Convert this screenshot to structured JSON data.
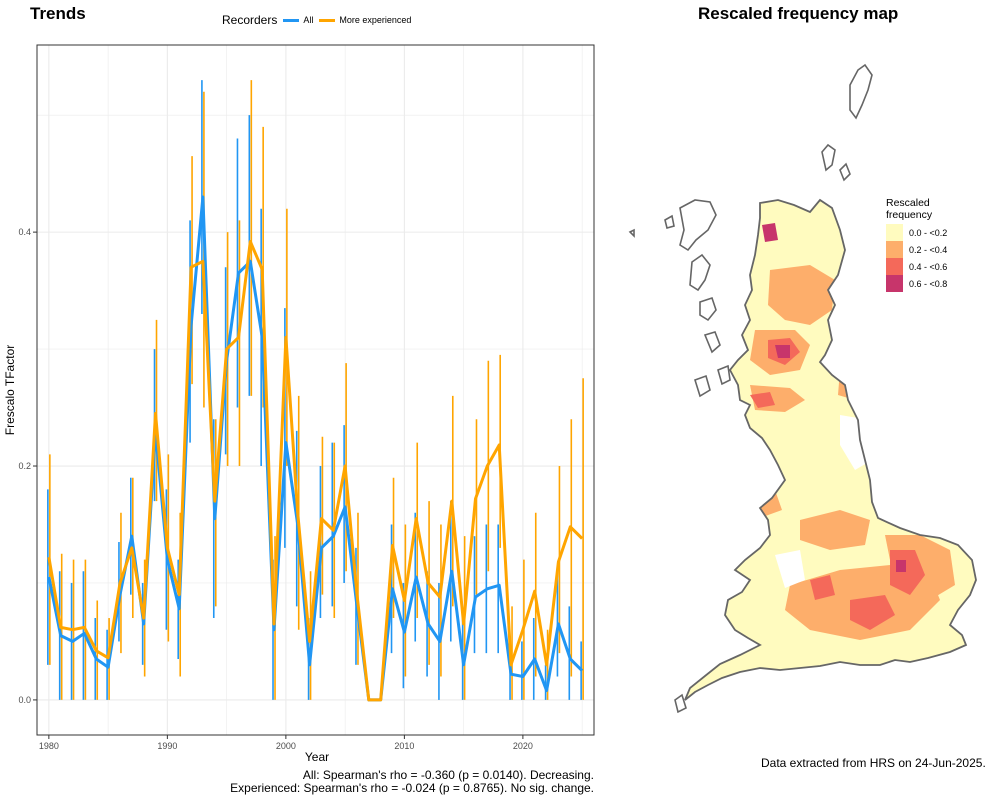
{
  "left_panel": {
    "title": "Trends"
  },
  "right_panel": {
    "title": "Rescaled frequency map"
  },
  "legend": {
    "title": "Recorders",
    "items": [
      {
        "label": "All",
        "color": "#2196F3"
      },
      {
        "label": "More experienced",
        "color": "#FFA500"
      }
    ]
  },
  "chart_data": {
    "type": "line",
    "xlabel": "Year",
    "ylabel": "Frescalo TFactor",
    "xlim": [
      1979,
      2026
    ],
    "ylim": [
      -0.03,
      0.56
    ],
    "x_ticks": [
      1980,
      1990,
      2000,
      2010,
      2020
    ],
    "y_ticks": [
      0.0,
      0.2,
      0.4
    ],
    "y_tick_labels": [
      "0.0",
      "0.2",
      "0.4"
    ],
    "grid": true,
    "x": [
      1980,
      1981,
      1982,
      1983,
      1984,
      1985,
      1986,
      1987,
      1988,
      1989,
      1990,
      1991,
      1992,
      1993,
      1994,
      1995,
      1996,
      1997,
      1998,
      1999,
      2000,
      2001,
      2002,
      2003,
      2004,
      2005,
      2006,
      2007,
      2008,
      2009,
      2010,
      2011,
      2012,
      2013,
      2014,
      2015,
      2016,
      2017,
      2018,
      2019,
      2020,
      2021,
      2022,
      2023,
      2024,
      2025
    ],
    "series": [
      {
        "name": "All",
        "color": "#2196F3",
        "values": [
          0.105,
          0.055,
          0.05,
          0.057,
          0.035,
          0.028,
          0.09,
          0.14,
          0.065,
          0.23,
          0.12,
          0.078,
          0.32,
          0.43,
          0.155,
          0.29,
          0.365,
          0.375,
          0.31,
          0.06,
          0.22,
          0.15,
          0.03,
          0.13,
          0.14,
          0.165,
          0.08,
          0.0,
          0.0,
          0.095,
          0.058,
          0.105,
          0.065,
          0.05,
          0.11,
          0.03,
          0.088,
          0.095,
          0.098,
          0.022,
          0.02,
          0.035,
          0.008,
          0.065,
          0.035,
          0.025
        ],
        "lower": [
          0.03,
          0.0,
          0.0,
          0.0,
          0.0,
          0.0,
          0.05,
          0.09,
          0.03,
          0.17,
          0.06,
          0.035,
          0.22,
          0.33,
          0.07,
          0.21,
          0.25,
          0.26,
          0.2,
          0.0,
          0.13,
          0.08,
          0.0,
          0.07,
          0.08,
          0.1,
          0.03,
          0.0,
          0.0,
          0.04,
          0.01,
          0.05,
          0.02,
          0.0,
          0.05,
          0.0,
          0.04,
          0.04,
          0.04,
          0.0,
          0.0,
          0.0,
          0.0,
          0.02,
          0.0,
          0.0
        ],
        "upper": [
          0.18,
          0.11,
          0.1,
          0.11,
          0.07,
          0.06,
          0.135,
          0.19,
          0.1,
          0.3,
          0.18,
          0.12,
          0.41,
          0.53,
          0.24,
          0.37,
          0.48,
          0.5,
          0.42,
          0.12,
          0.335,
          0.23,
          0.07,
          0.2,
          0.22,
          0.235,
          0.13,
          0.0,
          0.0,
          0.15,
          0.1,
          0.16,
          0.11,
          0.1,
          0.17,
          0.07,
          0.14,
          0.15,
          0.15,
          0.05,
          0.05,
          0.07,
          0.03,
          0.11,
          0.08,
          0.05
        ]
      },
      {
        "name": "More experienced",
        "color": "#FFA500",
        "values": [
          0.122,
          0.062,
          0.06,
          0.062,
          0.042,
          0.036,
          0.1,
          0.13,
          0.07,
          0.245,
          0.13,
          0.09,
          0.37,
          0.375,
          0.17,
          0.3,
          0.31,
          0.392,
          0.368,
          0.065,
          0.31,
          0.16,
          0.05,
          0.155,
          0.145,
          0.2,
          0.09,
          0.0,
          0.0,
          0.132,
          0.085,
          0.155,
          0.1,
          0.088,
          0.17,
          0.065,
          0.172,
          0.2,
          0.218,
          0.03,
          0.06,
          0.093,
          0.03,
          0.118,
          0.148,
          0.138
        ],
        "lower": [
          0.03,
          0.0,
          0.0,
          0.0,
          0.0,
          0.0,
          0.04,
          0.07,
          0.02,
          0.17,
          0.05,
          0.02,
          0.27,
          0.25,
          0.08,
          0.2,
          0.2,
          0.26,
          0.25,
          0.0,
          0.2,
          0.06,
          0.0,
          0.09,
          0.07,
          0.11,
          0.03,
          0.0,
          0.0,
          0.07,
          0.02,
          0.07,
          0.03,
          0.02,
          0.08,
          0.0,
          0.09,
          0.11,
          0.13,
          0.0,
          0.0,
          0.02,
          0.0,
          0.04,
          0.02,
          0.0
        ],
        "upper": [
          0.21,
          0.125,
          0.12,
          0.12,
          0.085,
          0.07,
          0.16,
          0.19,
          0.12,
          0.325,
          0.21,
          0.16,
          0.465,
          0.52,
          0.24,
          0.4,
          0.41,
          0.53,
          0.49,
          0.14,
          0.42,
          0.26,
          0.11,
          0.225,
          0.22,
          0.288,
          0.16,
          0.0,
          0.0,
          0.19,
          0.15,
          0.22,
          0.17,
          0.15,
          0.26,
          0.14,
          0.24,
          0.29,
          0.295,
          0.08,
          0.12,
          0.16,
          0.06,
          0.2,
          0.24,
          0.275
        ]
      }
    ]
  },
  "stats": {
    "all": "All: Spearman's rho = -0.360 (p = 0.0140). Decreasing.",
    "experienced": "Experienced: Spearman's rho = -0.024 (p = 0.8765). No sig. change."
  },
  "map": {
    "legend_title_line1": "Rescaled",
    "legend_title_line2": "frequency",
    "legend_items": [
      {
        "label": "0.0 - <0.2",
        "color": "#FFFBBF"
      },
      {
        "label": "0.2 - <0.4",
        "color": "#FDAE6B"
      },
      {
        "label": "0.4 - <0.6",
        "color": "#F4695A"
      },
      {
        "label": "0.6 - <0.8",
        "color": "#C7356B"
      }
    ],
    "outline_color": "#666666",
    "data_note": "Data extracted from HRS on 24-Jun-2025."
  }
}
